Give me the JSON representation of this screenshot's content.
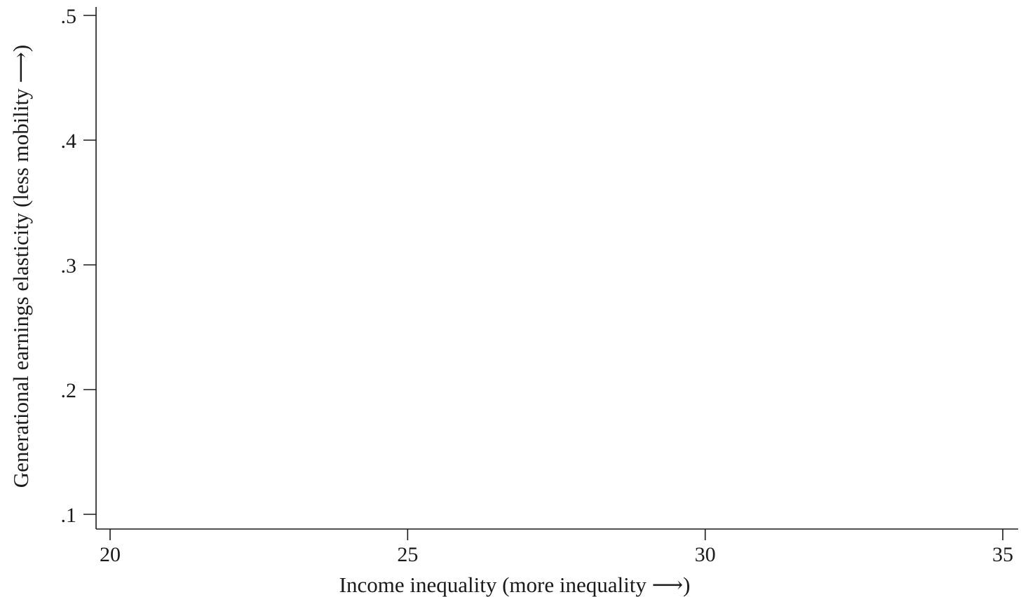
{
  "chart_data": {
    "type": "scatter",
    "title": "",
    "xlabel": "Income inequality (more inequality ⟶)",
    "ylabel": "Generational earnings elasticity (less mobility ⟶)",
    "xlim": [
      20,
      35
    ],
    "ylim": [
      0.1,
      0.5
    ],
    "x_ticks": [
      {
        "value": 20,
        "label": "20"
      },
      {
        "value": 25,
        "label": "25"
      },
      {
        "value": 30,
        "label": "30"
      },
      {
        "value": 35,
        "label": "35"
      }
    ],
    "y_ticks": [
      {
        "value": 0.1,
        "label": ".1"
      },
      {
        "value": 0.2,
        "label": ".2"
      },
      {
        "value": 0.3,
        "label": ".3"
      },
      {
        "value": 0.4,
        "label": ".4"
      },
      {
        "value": 0.5,
        "label": ".5"
      }
    ],
    "grid": false,
    "series": []
  }
}
